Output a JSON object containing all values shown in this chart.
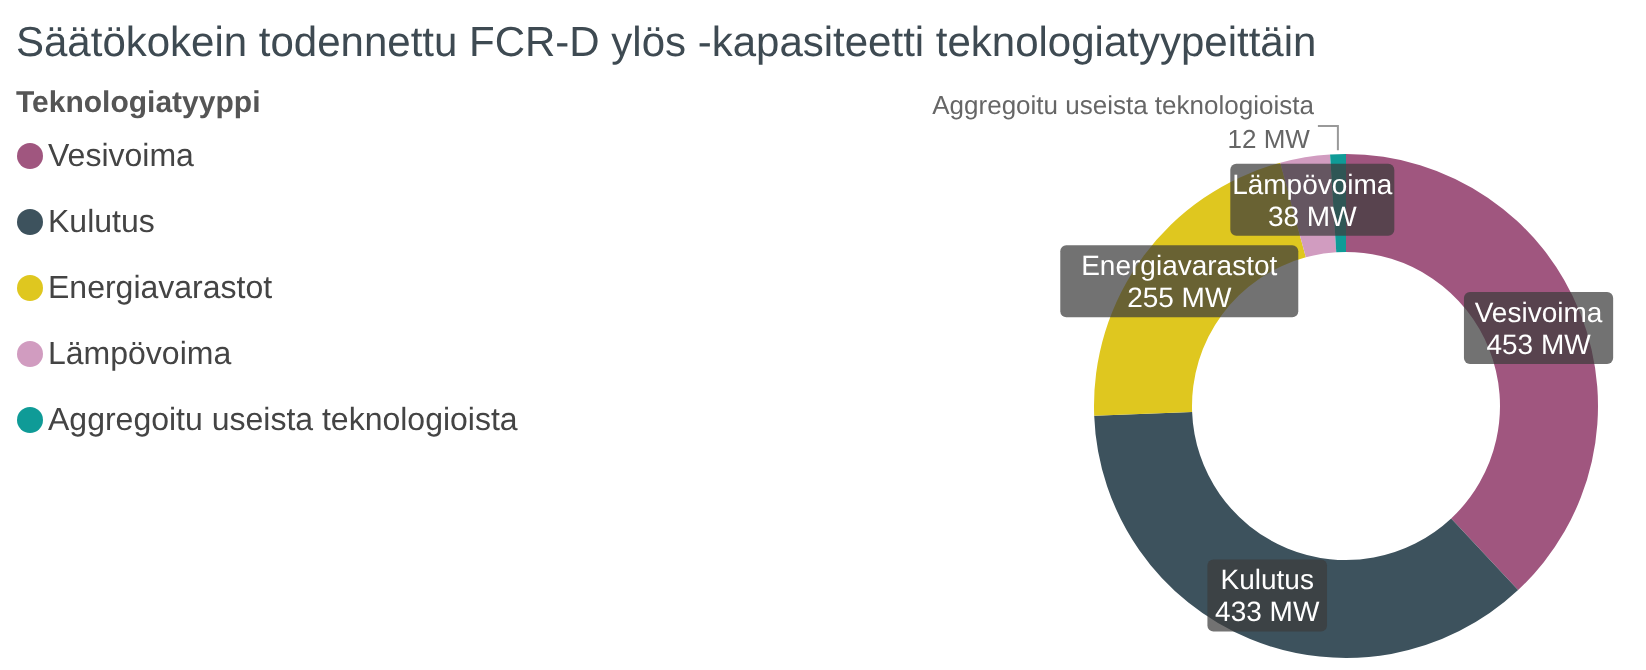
{
  "chart_data": {
    "type": "donut",
    "title": "Säätökokein todennettu FCR-D ylös -kapasiteetti teknologiatyypeittäin",
    "legend_title": "Teknologiatyyppi",
    "legend": "top left",
    "categories": [
      "Vesivoima",
      "Kulutus",
      "Energiavarastot",
      "Lämpövoima",
      "Aggregoitu useista teknologioista"
    ],
    "values": [
      453,
      433,
      255,
      38,
      12
    ],
    "colors": [
      "#a0567f",
      "#3d525d",
      "#dfc71f",
      "#d19cc0",
      "#0f9b97"
    ],
    "value_labels": [
      "453 MW",
      "433 MW",
      "255 MW",
      "38 MW",
      "12 MW"
    ]
  }
}
